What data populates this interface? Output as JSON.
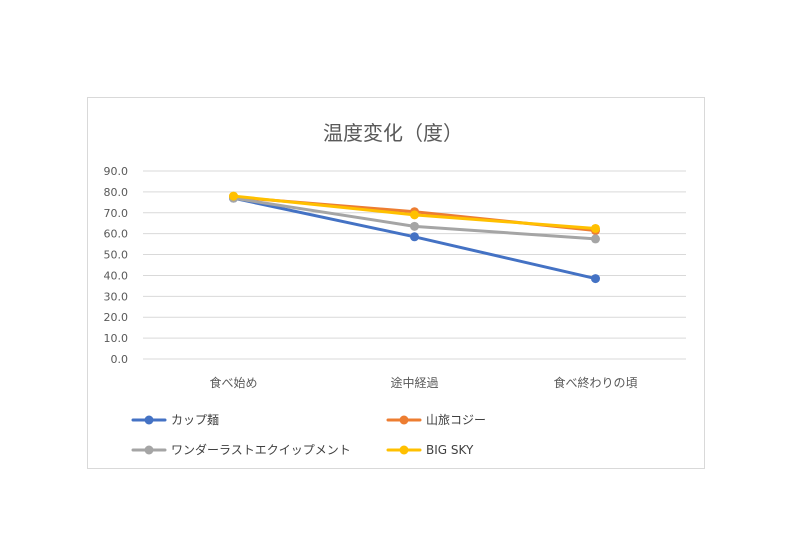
{
  "chart_data": {
    "type": "line",
    "title": "温度変化（度）",
    "categories": [
      "食べ始め",
      "途中経過",
      "食べ終わりの頃"
    ],
    "y_ticks": [
      "0.0",
      "10.0",
      "20.0",
      "30.0",
      "40.0",
      "50.0",
      "60.0",
      "70.0",
      "80.0",
      "90.0"
    ],
    "ylim": [
      0,
      90
    ],
    "grid": true,
    "legend_position": "bottom",
    "series": [
      {
        "name": "カップ麺",
        "color": "#4472c4",
        "values": [
          77,
          58.5,
          38.5
        ]
      },
      {
        "name": "山旅コジー",
        "color": "#ed7d31",
        "values": [
          77.5,
          70.5,
          61.5
        ]
      },
      {
        "name": "ワンダーラストエクイップメント",
        "color": "#a5a5a5",
        "values": [
          77,
          63.5,
          57.5
        ]
      },
      {
        "name": "BIG SKY",
        "color": "#ffc000",
        "values": [
          78,
          69,
          62.5
        ]
      }
    ]
  }
}
